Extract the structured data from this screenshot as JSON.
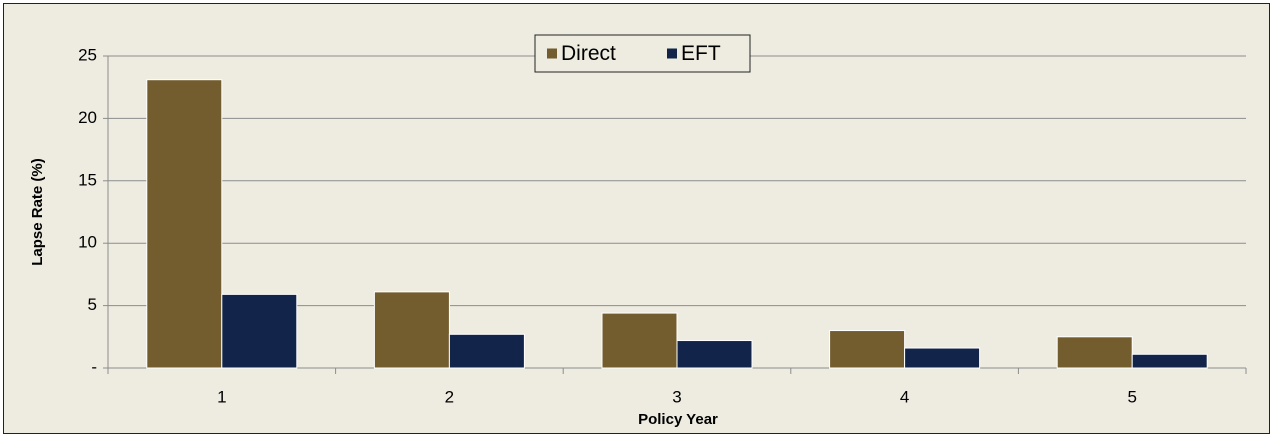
{
  "chart_data": {
    "type": "bar",
    "categories": [
      "1",
      "2",
      "3",
      "4",
      "5"
    ],
    "series": [
      {
        "name": "Direct",
        "color": "#735c2e",
        "values": [
          23.1,
          6.1,
          4.4,
          3.0,
          2.5
        ]
      },
      {
        "name": "EFT",
        "color": "#12244a",
        "values": [
          5.9,
          2.7,
          2.2,
          1.6,
          1.1
        ]
      }
    ],
    "xlabel": "Policy Year",
    "ylabel": "Lapse Rate (%)",
    "ylim": [
      0,
      25
    ],
    "yticks": [
      {
        "value": 0,
        "label": "-"
      },
      5,
      10,
      15,
      20,
      25
    ],
    "grid": true,
    "legend": "top"
  }
}
